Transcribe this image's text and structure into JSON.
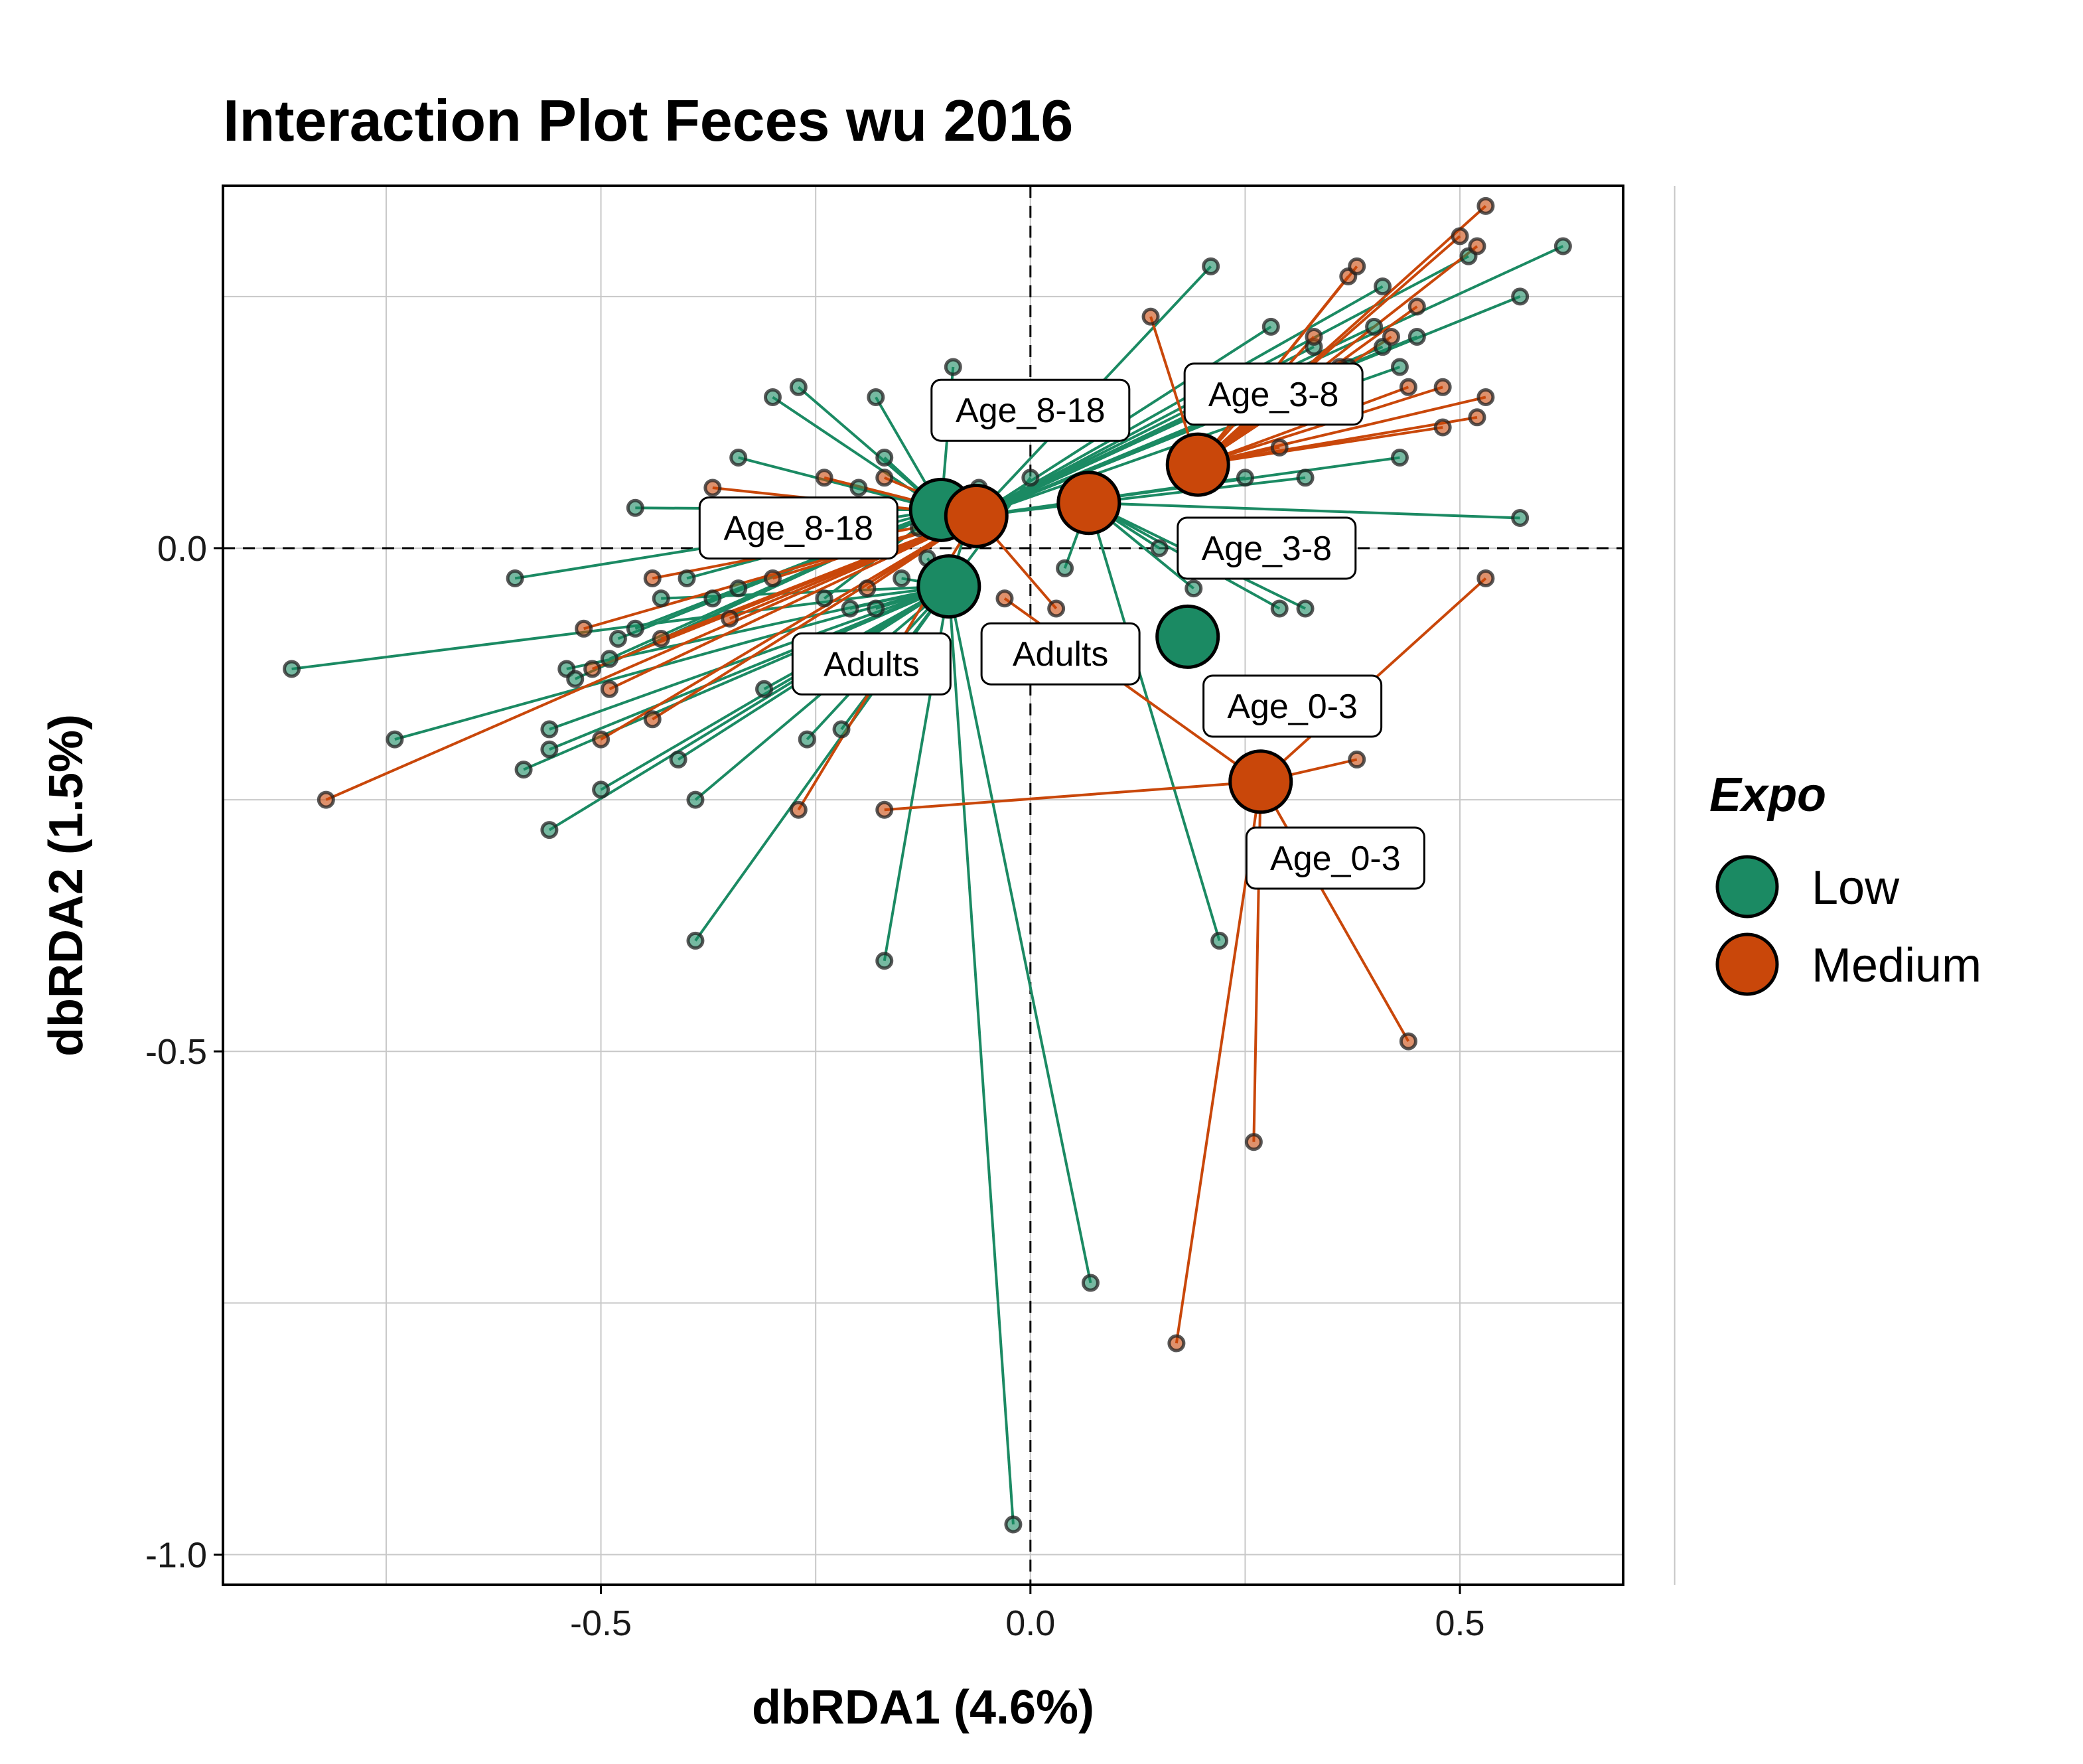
{
  "chart_data": {
    "type": "scatter",
    "title": "Interaction Plot Feces wu 2016",
    "xlabel": "dbRDA1 (4.6%)",
    "ylabel": "dbRDA2 (1.5%)",
    "xlim": [
      -0.94,
      0.69
    ],
    "ylim": [
      -1.03,
      0.36
    ],
    "x_ticks": [
      -0.5,
      0.0,
      0.5
    ],
    "x_tick_labels": [
      "-0.5",
      "0.0",
      "0.5"
    ],
    "y_ticks": [
      -1.0,
      -0.5,
      0.0
    ],
    "y_tick_labels": [
      "-1.0",
      "-0.5",
      "0.0"
    ],
    "grid": true,
    "reference_lines": {
      "x": 0,
      "y": 0,
      "style": "dashed"
    },
    "legend": {
      "title": "Expo",
      "placement": "right",
      "entries": [
        {
          "name": "Low",
          "color": "#1b8a63"
        },
        {
          "name": "Medium",
          "color": "#c9470a"
        }
      ]
    },
    "centroids": [
      {
        "label": "Age_8-18",
        "expo": "Low",
        "x": -0.104,
        "y": 0.038,
        "label_x": -0.27,
        "label_y": 0.02
      },
      {
        "label": "Age_8-18",
        "expo": "Medium",
        "x": -0.063,
        "y": 0.032,
        "label_x": 0.0,
        "label_y": 0.137
      },
      {
        "label": "Adults",
        "expo": "Low",
        "x": -0.095,
        "y": -0.038,
        "label_x": -0.185,
        "label_y": -0.115
      },
      {
        "label": "Adults",
        "expo": "Medium",
        "x": 0.068,
        "y": 0.045,
        "label_x": 0.035,
        "label_y": -0.105
      },
      {
        "label": "Age_3-8",
        "expo": "Low",
        "x": 0.183,
        "y": -0.088,
        "label_x": 0.275,
        "label_y": 0.0
      },
      {
        "label": "Age_3-8",
        "expo": "Medium",
        "x": 0.195,
        "y": 0.083,
        "label_x": 0.283,
        "label_y": 0.153
      },
      {
        "label": "Age_0-3",
        "expo": "Medium",
        "x": 0.268,
        "y": -0.232,
        "label_x": 0.305,
        "label_y": -0.157
      },
      {
        "label": "Age_0-3",
        "expo": "Medium",
        "x": 0.268,
        "y": -0.232,
        "label_x": 0.355,
        "label_y": -0.308
      }
    ],
    "series": [
      {
        "name": "Low",
        "color": "#1b8a63",
        "points": [
          {
            "x": -0.86,
            "y": -0.12,
            "c": 2
          },
          {
            "x": -0.74,
            "y": -0.19,
            "c": 2
          },
          {
            "x": -0.6,
            "y": -0.03,
            "c": 0
          },
          {
            "x": -0.59,
            "y": -0.22,
            "c": 2
          },
          {
            "x": -0.56,
            "y": -0.2,
            "c": 2
          },
          {
            "x": -0.56,
            "y": -0.18,
            "c": 2
          },
          {
            "x": -0.56,
            "y": -0.28,
            "c": 2
          },
          {
            "x": -0.54,
            "y": -0.12,
            "c": 2
          },
          {
            "x": -0.53,
            "y": -0.13,
            "c": 0
          },
          {
            "x": -0.5,
            "y": -0.24,
            "c": 2
          },
          {
            "x": -0.49,
            "y": -0.11,
            "c": 0
          },
          {
            "x": -0.48,
            "y": -0.09,
            "c": 0
          },
          {
            "x": -0.46,
            "y": 0.04,
            "c": 0
          },
          {
            "x": -0.46,
            "y": -0.08,
            "c": 0
          },
          {
            "x": -0.43,
            "y": -0.05,
            "c": 2
          },
          {
            "x": -0.41,
            "y": -0.21,
            "c": 2
          },
          {
            "x": -0.4,
            "y": -0.03,
            "c": 0
          },
          {
            "x": -0.39,
            "y": -0.25,
            "c": 2
          },
          {
            "x": -0.39,
            "y": -0.39,
            "c": 2
          },
          {
            "x": -0.37,
            "y": -0.05,
            "c": 0
          },
          {
            "x": -0.34,
            "y": 0.09,
            "c": 0
          },
          {
            "x": -0.34,
            "y": -0.04,
            "c": 0
          },
          {
            "x": -0.31,
            "y": -0.14,
            "c": 2
          },
          {
            "x": -0.3,
            "y": 0.15,
            "c": 0
          },
          {
            "x": -0.27,
            "y": 0.16,
            "c": 0
          },
          {
            "x": -0.26,
            "y": -0.19,
            "c": 2
          },
          {
            "x": -0.24,
            "y": -0.05,
            "c": 0
          },
          {
            "x": -0.22,
            "y": -0.18,
            "c": 2
          },
          {
            "x": -0.21,
            "y": -0.06,
            "c": 2
          },
          {
            "x": -0.2,
            "y": 0.06,
            "c": 0
          },
          {
            "x": -0.18,
            "y": 0.15,
            "c": 0
          },
          {
            "x": -0.18,
            "y": -0.06,
            "c": 2
          },
          {
            "x": -0.17,
            "y": 0.09,
            "c": 0
          },
          {
            "x": -0.17,
            "y": -0.41,
            "c": 2
          },
          {
            "x": -0.15,
            "y": -0.03,
            "c": 2
          },
          {
            "x": -0.13,
            "y": 0.02,
            "c": 0
          },
          {
            "x": -0.12,
            "y": -0.01,
            "c": 2
          },
          {
            "x": -0.09,
            "y": 0.18,
            "c": 0
          },
          {
            "x": -0.06,
            "y": 0.06,
            "c": 2
          },
          {
            "x": 0.0,
            "y": 0.07,
            "c": 2
          },
          {
            "x": 0.04,
            "y": -0.02,
            "c": 3
          },
          {
            "x": 0.07,
            "y": -0.73,
            "c": 2
          },
          {
            "x": -0.02,
            "y": -0.97,
            "c": 2
          },
          {
            "x": 0.15,
            "y": -0.0,
            "c": 3
          },
          {
            "x": 0.19,
            "y": -0.04,
            "c": 3
          },
          {
            "x": 0.21,
            "y": 0.28,
            "c": 1
          },
          {
            "x": 0.22,
            "y": -0.39,
            "c": 3
          },
          {
            "x": 0.25,
            "y": 0.07,
            "c": 1
          },
          {
            "x": 0.28,
            "y": 0.22,
            "c": 1
          },
          {
            "x": 0.29,
            "y": -0.06,
            "c": 3
          },
          {
            "x": 0.32,
            "y": 0.07,
            "c": 1
          },
          {
            "x": 0.32,
            "y": -0.06,
            "c": 3
          },
          {
            "x": 0.33,
            "y": 0.2,
            "c": 1
          },
          {
            "x": 0.37,
            "y": 0.18,
            "c": 1
          },
          {
            "x": 0.4,
            "y": 0.22,
            "c": 1
          },
          {
            "x": 0.41,
            "y": 0.26,
            "c": 1
          },
          {
            "x": 0.43,
            "y": 0.18,
            "c": 1
          },
          {
            "x": 0.43,
            "y": 0.09,
            "c": 1
          },
          {
            "x": 0.45,
            "y": 0.21,
            "c": 1
          },
          {
            "x": 0.51,
            "y": 0.29,
            "c": 1
          },
          {
            "x": 0.57,
            "y": 0.25,
            "c": 1
          },
          {
            "x": 0.57,
            "y": 0.03,
            "c": 3
          },
          {
            "x": 0.62,
            "y": 0.3,
            "c": 1
          },
          {
            "x": 0.41,
            "y": 0.2,
            "c": 1
          },
          {
            "x": 0.28,
            "y": 0.17,
            "c": 1
          }
        ]
      },
      {
        "name": "Medium",
        "color": "#c9470a",
        "points": [
          {
            "x": -0.82,
            "y": -0.25,
            "c": 1
          },
          {
            "x": -0.52,
            "y": -0.08,
            "c": 1
          },
          {
            "x": -0.51,
            "y": -0.12,
            "c": 1
          },
          {
            "x": -0.5,
            "y": -0.19,
            "c": 1
          },
          {
            "x": -0.49,
            "y": -0.14,
            "c": 1
          },
          {
            "x": -0.44,
            "y": -0.03,
            "c": 1
          },
          {
            "x": -0.44,
            "y": -0.17,
            "c": 1
          },
          {
            "x": -0.43,
            "y": -0.09,
            "c": 1
          },
          {
            "x": -0.37,
            "y": 0.06,
            "c": 1
          },
          {
            "x": -0.35,
            "y": -0.07,
            "c": 1
          },
          {
            "x": -0.3,
            "y": -0.03,
            "c": 1
          },
          {
            "x": -0.27,
            "y": -0.26,
            "c": 1
          },
          {
            "x": -0.24,
            "y": 0.07,
            "c": 1
          },
          {
            "x": -0.19,
            "y": -0.04,
            "c": 1
          },
          {
            "x": -0.17,
            "y": 0.07,
            "c": 1
          },
          {
            "x": -0.17,
            "y": -0.26,
            "c": 6
          },
          {
            "x": -0.03,
            "y": -0.05,
            "c": 6
          },
          {
            "x": 0.03,
            "y": -0.06,
            "c": 1
          },
          {
            "x": 0.14,
            "y": 0.23,
            "c": 5
          },
          {
            "x": 0.17,
            "y": -0.79,
            "c": 6
          },
          {
            "x": 0.26,
            "y": -0.59,
            "c": 6
          },
          {
            "x": 0.29,
            "y": 0.1,
            "c": 5
          },
          {
            "x": 0.32,
            "y": 0.17,
            "c": 5
          },
          {
            "x": 0.37,
            "y": 0.27,
            "c": 5
          },
          {
            "x": 0.38,
            "y": -0.21,
            "c": 6
          },
          {
            "x": 0.38,
            "y": 0.28,
            "c": 5
          },
          {
            "x": 0.42,
            "y": 0.21,
            "c": 5
          },
          {
            "x": 0.44,
            "y": -0.49,
            "c": 6
          },
          {
            "x": 0.44,
            "y": 0.16,
            "c": 5
          },
          {
            "x": 0.48,
            "y": 0.16,
            "c": 5
          },
          {
            "x": 0.48,
            "y": 0.12,
            "c": 5
          },
          {
            "x": 0.5,
            "y": 0.31,
            "c": 5
          },
          {
            "x": 0.52,
            "y": 0.13,
            "c": 5
          },
          {
            "x": 0.52,
            "y": 0.3,
            "c": 5
          },
          {
            "x": 0.53,
            "y": 0.34,
            "c": 5
          },
          {
            "x": 0.53,
            "y": 0.15,
            "c": 5
          },
          {
            "x": 0.53,
            "y": -0.03,
            "c": 6
          },
          {
            "x": 0.33,
            "y": 0.21,
            "c": 5
          },
          {
            "x": 0.36,
            "y": 0.18,
            "c": 5
          },
          {
            "x": 0.45,
            "y": 0.24,
            "c": 5
          }
        ]
      }
    ]
  }
}
